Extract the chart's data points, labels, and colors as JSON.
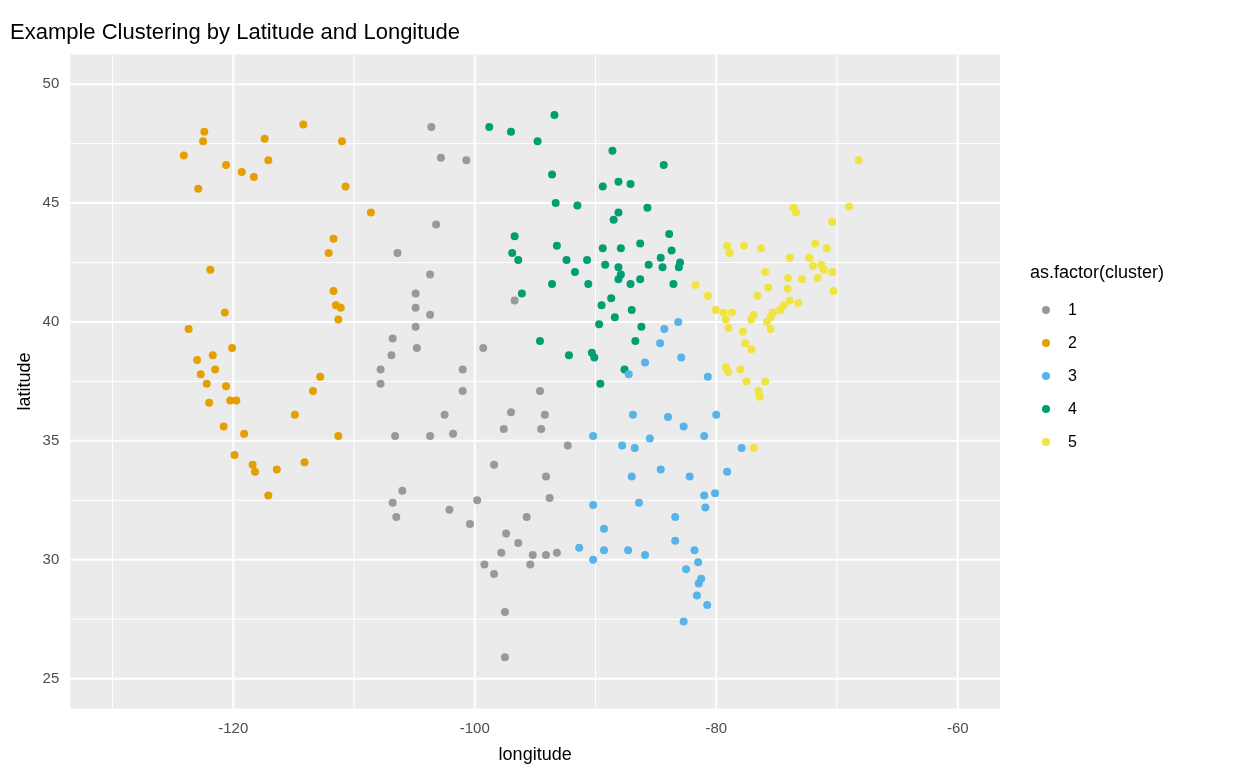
{
  "chart_data": {
    "type": "scatter",
    "title": "Example Clustering by Latitude and Longitude",
    "xlabel": "longitude",
    "ylabel": "latitude",
    "legend_title": "as.factor(cluster)",
    "legend": "right",
    "grid": true,
    "marker": "circle",
    "xlim": [
      -133.5,
      -56.5
    ],
    "xticks": [
      -120,
      -100,
      -80,
      -60
    ],
    "ylim": [
      23.75,
      51.25
    ],
    "yticks": [
      25,
      30,
      35,
      40,
      45,
      50
    ],
    "series": [
      {
        "name": "1",
        "color": "#999999",
        "x": [
          -103.6,
          -102.8,
          -100.7,
          -103.2,
          -106.4,
          -103.7,
          -104.9,
          -104.9,
          -103.7,
          -104.9,
          -106.8,
          -104.8,
          -106.9,
          -107.8,
          -107.8,
          -96.7,
          -99.3,
          -101.0,
          -101.0,
          -94.6,
          -102.5,
          -97.0,
          -94.2,
          -97.6,
          -94.5,
          -106.6,
          -103.7,
          -101.8,
          -92.3,
          -98.4,
          -94.1,
          -106.0,
          -106.8,
          -106.5,
          -102.1,
          -99.8,
          -93.8,
          -100.4,
          -95.7,
          -97.4,
          -96.4,
          -97.8,
          -95.2,
          -94.1,
          -93.2,
          -95.4,
          -99.2,
          -98.4,
          -97.5,
          -97.5
        ],
        "values": [
          48.2,
          46.9,
          46.8,
          44.1,
          42.9,
          42.0,
          41.2,
          40.6,
          40.3,
          39.8,
          39.3,
          38.9,
          38.6,
          38.0,
          37.4,
          40.9,
          38.9,
          38.0,
          37.1,
          37.1,
          36.1,
          36.2,
          36.1,
          35.5,
          35.5,
          35.2,
          35.2,
          35.3,
          34.8,
          34.0,
          33.5,
          32.9,
          32.4,
          31.8,
          32.1,
          32.5,
          32.6,
          31.5,
          31.8,
          31.1,
          30.7,
          30.3,
          30.2,
          30.2,
          30.3,
          29.8,
          29.8,
          29.4,
          27.8,
          25.9
        ]
      },
      {
        "name": "2",
        "color": "#E69F00",
        "x": [
          -122.4,
          -122.5,
          -124.1,
          -120.6,
          -119.3,
          -118.3,
          -122.9,
          -117.4,
          -117.1,
          -114.2,
          -111.0,
          -110.7,
          -108.6,
          -111.7,
          -112.1,
          -121.9,
          -111.7,
          -111.5,
          -111.1,
          -111.3,
          -120.7,
          -123.7,
          -120.1,
          -123.0,
          -121.7,
          -121.5,
          -122.7,
          -122.2,
          -120.6,
          -122.0,
          -120.25,
          -119.75,
          -112.8,
          -113.4,
          -114.9,
          -120.8,
          -119.1,
          -111.3,
          -119.9,
          -114.1,
          -118.4,
          -118.2,
          -116.4,
          -117.1
        ],
        "values": [
          48.0,
          47.6,
          47.0,
          46.6,
          46.3,
          46.1,
          45.6,
          47.7,
          46.8,
          48.3,
          47.6,
          45.7,
          44.6,
          43.5,
          42.9,
          42.2,
          41.3,
          40.7,
          40.6,
          40.1,
          40.4,
          39.7,
          38.9,
          38.4,
          38.6,
          38.0,
          37.8,
          37.4,
          37.3,
          36.6,
          36.7,
          36.7,
          37.7,
          37.1,
          36.1,
          35.6,
          35.3,
          35.2,
          34.4,
          34.1,
          34.0,
          33.7,
          33.8,
          32.7
        ]
      },
      {
        "name": "3",
        "color": "#56B4E9",
        "x": [
          -83.15,
          -84.3,
          -84.65,
          -82.9,
          -85.9,
          -87.25,
          -80.7,
          -86.9,
          -84.0,
          -82.7,
          -80.0,
          -81.0,
          -90.2,
          -87.8,
          -86.75,
          -85.5,
          -77.9,
          -87.0,
          -84.6,
          -82.2,
          -79.1,
          -81.0,
          -80.1,
          -80.9,
          -90.2,
          -86.4,
          -83.4,
          -89.3,
          -83.4,
          -91.35,
          -89.3,
          -87.3,
          -90.2,
          -85.9,
          -81.8,
          -81.5,
          -82.5,
          -81.25,
          -81.45,
          -81.6,
          -80.75,
          -82.7
        ],
        "values": [
          40.0,
          39.7,
          39.1,
          38.5,
          38.3,
          37.8,
          37.7,
          36.1,
          36.0,
          35.6,
          36.1,
          35.2,
          35.2,
          34.8,
          34.7,
          35.1,
          34.7,
          33.5,
          33.8,
          33.5,
          33.7,
          32.7,
          32.8,
          32.2,
          32.3,
          32.4,
          31.8,
          31.3,
          30.8,
          30.5,
          30.4,
          30.4,
          30.0,
          30.2,
          30.4,
          29.9,
          29.6,
          29.2,
          29.0,
          28.5,
          28.1,
          27.4
        ]
      },
      {
        "name": "4",
        "color": "#009E73",
        "x": [
          -98.8,
          -97.0,
          -94.8,
          -93.4,
          -88.6,
          -93.6,
          -89.4,
          -88.1,
          -87.1,
          -93.3,
          -91.5,
          -85.7,
          -88.1,
          -88.5,
          -96.7,
          -93.2,
          -89.4,
          -87.9,
          -86.3,
          -96.9,
          -96.4,
          -92.4,
          -90.7,
          -91.7,
          -89.2,
          -88.1,
          -87.9,
          -88.1,
          -87.1,
          -86.3,
          -85.6,
          -93.6,
          -90.6,
          -96.1,
          -89.5,
          -88.7,
          -88.4,
          -87.0,
          -89.7,
          -86.2,
          -86.7,
          -94.6,
          -92.2,
          -90.3,
          -90.1,
          -87.6,
          -89.6,
          -84.35,
          -83.9,
          -83.7,
          -84.6,
          -83.0,
          -83.1,
          -84.45,
          -83.55
        ],
        "values": [
          48.2,
          48.0,
          47.6,
          48.7,
          47.2,
          46.2,
          45.7,
          45.9,
          45.8,
          45.0,
          44.9,
          44.8,
          44.6,
          44.3,
          43.6,
          43.2,
          43.1,
          43.1,
          43.3,
          42.9,
          42.6,
          42.6,
          42.6,
          42.1,
          42.4,
          42.3,
          42.0,
          41.8,
          41.6,
          41.8,
          42.4,
          41.6,
          41.6,
          41.2,
          40.7,
          41.0,
          40.2,
          40.5,
          39.9,
          39.8,
          39.2,
          39.2,
          38.6,
          38.7,
          38.5,
          38.0,
          37.4,
          46.6,
          43.7,
          43.0,
          42.7,
          42.5,
          42.3,
          42.3,
          41.6
        ]
      },
      {
        "name": "5",
        "color": "#F0E442",
        "x": [
          -68.2,
          -73.6,
          -73.4,
          -69.0,
          -70.4,
          -79.1,
          -78.9,
          -77.7,
          -76.3,
          -71.8,
          -70.85,
          -73.9,
          -72.3,
          -72.0,
          -71.3,
          -71.1,
          -70.4,
          -75.95,
          -74.05,
          -72.9,
          -71.6,
          -70.3,
          -81.7,
          -80.7,
          -76.6,
          -75.7,
          -74.1,
          -73.9,
          -73.2,
          -74.4,
          -74.7,
          -75.3,
          -75.5,
          -75.8,
          -75.5,
          -76.9,
          -77.1,
          -80.05,
          -79.4,
          -78.7,
          -79.2,
          -79.0,
          -77.8,
          -77.6,
          -77.1,
          -79.2,
          -79.0,
          -78.0,
          -77.5,
          -75.95,
          -76.5,
          -76.4,
          -76.9
        ],
        "values": [
          46.8,
          44.8,
          44.6,
          44.85,
          44.2,
          43.2,
          42.9,
          43.2,
          43.1,
          43.3,
          43.1,
          42.7,
          42.7,
          42.35,
          42.4,
          42.2,
          42.1,
          42.1,
          41.85,
          41.8,
          41.85,
          41.3,
          41.55,
          41.1,
          41.1,
          41.45,
          41.4,
          40.9,
          40.8,
          40.7,
          40.5,
          40.4,
          40.2,
          40.0,
          39.7,
          40.3,
          40.1,
          40.5,
          40.4,
          40.4,
          40.1,
          39.75,
          39.6,
          39.1,
          38.85,
          38.1,
          37.9,
          38.0,
          37.5,
          37.5,
          37.1,
          36.85,
          34.7
        ]
      }
    ]
  }
}
